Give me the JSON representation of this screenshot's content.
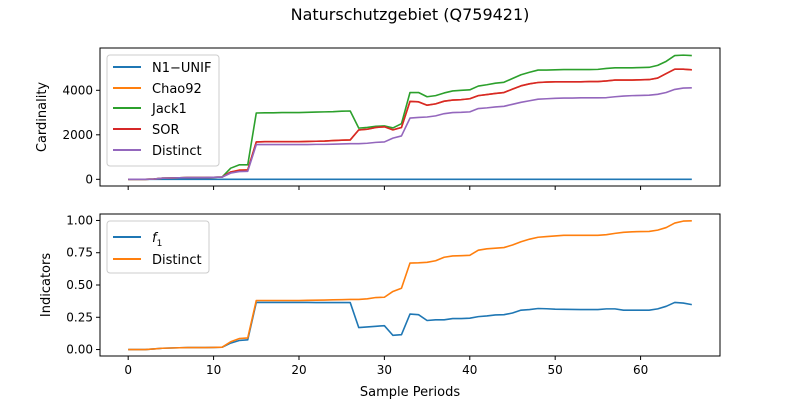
{
  "figure": {
    "title": "Naturschutzgebiet (Q759421)"
  },
  "colors": {
    "blue": "#1f77b4",
    "orange": "#ff7f0e",
    "green": "#2ca02c",
    "red": "#d62728",
    "purple": "#9467bd"
  },
  "chart_data": [
    {
      "type": "line",
      "ylabel": "Cardinality",
      "xlabel": "",
      "xlim": [
        -3.3,
        69.3
      ],
      "ylim": [
        -300,
        5900
      ],
      "x_ticks": [
        0,
        10,
        20,
        30,
        40,
        50,
        60
      ],
      "y_ticks": [
        0,
        2000,
        4000
      ],
      "y_tick_labels": [
        "0",
        "2000",
        "4000"
      ],
      "x": [
        0,
        1,
        2,
        3,
        4,
        5,
        6,
        7,
        8,
        9,
        10,
        11,
        12,
        13,
        14,
        15,
        16,
        17,
        18,
        19,
        20,
        21,
        22,
        23,
        24,
        25,
        26,
        27,
        28,
        29,
        30,
        31,
        32,
        33,
        34,
        35,
        36,
        37,
        38,
        39,
        40,
        41,
        42,
        43,
        44,
        45,
        46,
        47,
        48,
        49,
        50,
        51,
        52,
        53,
        54,
        55,
        56,
        57,
        58,
        59,
        60,
        61,
        62,
        63,
        64,
        65,
        66
      ],
      "legend_position": "upper left",
      "series": [
        {
          "name": "N1−UNIF",
          "color": "#1f77b4",
          "values": [
            0,
            0,
            0,
            0,
            0,
            0,
            0,
            0,
            0,
            0,
            0,
            0,
            0,
            0,
            0,
            0,
            0,
            0,
            0,
            0,
            0,
            0,
            0,
            0,
            0,
            0,
            0,
            0,
            0,
            0,
            0,
            0,
            0,
            0,
            0,
            0,
            0,
            0,
            0,
            0,
            0,
            0,
            0,
            0,
            0,
            0,
            0,
            0,
            0,
            0,
            0,
            0,
            0,
            0,
            0,
            0,
            0,
            0,
            0,
            0,
            0,
            0,
            0,
            0,
            0,
            0,
            0
          ]
        },
        {
          "name": "Chao92",
          "color": "#ff7f0e",
          "values": [
            0,
            0,
            0,
            10,
            50,
            60,
            70,
            80,
            80,
            80,
            90,
            100,
            330,
            420,
            430,
            1680,
            1690,
            1690,
            1690,
            1690,
            1690,
            1700,
            1710,
            1720,
            1740,
            1760,
            1770,
            2220,
            2250,
            2330,
            2360,
            2220,
            2330,
            3500,
            3480,
            3330,
            3390,
            3510,
            3560,
            3580,
            3620,
            3760,
            3810,
            3860,
            3900,
            4050,
            4200,
            4290,
            4350,
            4370,
            4380,
            4380,
            4380,
            4380,
            4390,
            4390,
            4420,
            4460,
            4460,
            4460,
            4470,
            4480,
            4550,
            4750,
            4950,
            4950,
            4920
          ]
        },
        {
          "name": "Jack1",
          "color": "#2ca02c",
          "values": [
            0,
            0,
            0,
            10,
            50,
            60,
            70,
            80,
            80,
            80,
            90,
            100,
            500,
            650,
            650,
            2980,
            2990,
            2990,
            3000,
            3000,
            3000,
            3010,
            3020,
            3030,
            3040,
            3060,
            3070,
            2300,
            2330,
            2380,
            2400,
            2310,
            2500,
            3900,
            3900,
            3710,
            3760,
            3880,
            3970,
            4000,
            4020,
            4190,
            4250,
            4320,
            4360,
            4530,
            4700,
            4810,
            4910,
            4910,
            4920,
            4930,
            4930,
            4930,
            4930,
            4940,
            4980,
            5010,
            5010,
            5010,
            5020,
            5030,
            5120,
            5300,
            5560,
            5580,
            5560
          ]
        },
        {
          "name": "SOR",
          "color": "#d62728",
          "values": [
            0,
            0,
            0,
            10,
            50,
            60,
            70,
            80,
            80,
            80,
            90,
            100,
            330,
            400,
            420,
            1680,
            1690,
            1690,
            1690,
            1690,
            1690,
            1700,
            1710,
            1720,
            1740,
            1760,
            1770,
            2220,
            2250,
            2330,
            2360,
            2220,
            2330,
            3500,
            3480,
            3330,
            3390,
            3510,
            3560,
            3580,
            3620,
            3760,
            3810,
            3860,
            3900,
            4050,
            4200,
            4290,
            4350,
            4370,
            4380,
            4380,
            4380,
            4380,
            4390,
            4390,
            4420,
            4460,
            4460,
            4460,
            4470,
            4480,
            4550,
            4750,
            4950,
            4950,
            4920
          ]
        },
        {
          "name": "Distinct",
          "color": "#9467bd",
          "values": [
            0,
            0,
            0,
            10,
            50,
            60,
            70,
            80,
            80,
            80,
            90,
            100,
            280,
            350,
            360,
            1560,
            1560,
            1560,
            1560,
            1560,
            1560,
            1560,
            1570,
            1570,
            1580,
            1590,
            1600,
            1600,
            1620,
            1660,
            1680,
            1850,
            1950,
            2750,
            2780,
            2800,
            2850,
            2950,
            3000,
            3010,
            3030,
            3180,
            3210,
            3250,
            3280,
            3370,
            3460,
            3530,
            3600,
            3620,
            3640,
            3650,
            3650,
            3660,
            3660,
            3660,
            3670,
            3710,
            3740,
            3760,
            3770,
            3780,
            3820,
            3900,
            4040,
            4100,
            4110
          ]
        }
      ]
    },
    {
      "type": "line",
      "ylabel": "Indicators",
      "xlabel": "Sample Periods",
      "xlim": [
        -3.3,
        69.3
      ],
      "ylim": [
        -0.05,
        1.05
      ],
      "x_ticks": [
        0,
        10,
        20,
        30,
        40,
        50,
        60
      ],
      "x_tick_labels": [
        "0",
        "10",
        "20",
        "30",
        "40",
        "50",
        "60"
      ],
      "y_ticks": [
        0,
        0.25,
        0.5,
        0.75,
        1.0
      ],
      "y_tick_labels": [
        "0.00",
        "0.25",
        "0.50",
        "0.75",
        "1.00"
      ],
      "x": [
        0,
        1,
        2,
        3,
        4,
        5,
        6,
        7,
        8,
        9,
        10,
        11,
        12,
        13,
        14,
        15,
        16,
        17,
        18,
        19,
        20,
        21,
        22,
        23,
        24,
        25,
        26,
        27,
        28,
        29,
        30,
        31,
        32,
        33,
        34,
        35,
        36,
        37,
        38,
        39,
        40,
        41,
        42,
        43,
        44,
        45,
        46,
        47,
        48,
        49,
        50,
        51,
        52,
        53,
        54,
        55,
        56,
        57,
        58,
        59,
        60,
        61,
        62,
        63,
        64,
        65,
        66
      ],
      "legend_position": "upper left",
      "series": [
        {
          "name": "f1",
          "legend_main": "f",
          "legend_sub": "1",
          "color": "#1f77b4",
          "values": [
            0,
            0,
            0,
            0.005,
            0.01,
            0.012,
            0.014,
            0.015,
            0.015,
            0.015,
            0.016,
            0.018,
            0.05,
            0.07,
            0.075,
            0.365,
            0.365,
            0.365,
            0.365,
            0.365,
            0.365,
            0.365,
            0.364,
            0.364,
            0.364,
            0.364,
            0.364,
            0.17,
            0.175,
            0.18,
            0.185,
            0.11,
            0.115,
            0.275,
            0.27,
            0.225,
            0.23,
            0.23,
            0.24,
            0.24,
            0.243,
            0.255,
            0.26,
            0.268,
            0.27,
            0.283,
            0.305,
            0.31,
            0.318,
            0.316,
            0.313,
            0.312,
            0.311,
            0.31,
            0.31,
            0.31,
            0.315,
            0.315,
            0.305,
            0.305,
            0.305,
            0.305,
            0.315,
            0.335,
            0.365,
            0.36,
            0.348
          ]
        },
        {
          "name": "Distinct",
          "color": "#ff7f0e",
          "values": [
            0,
            0,
            0,
            0.005,
            0.01,
            0.012,
            0.014,
            0.015,
            0.015,
            0.015,
            0.016,
            0.018,
            0.06,
            0.085,
            0.09,
            0.38,
            0.38,
            0.38,
            0.38,
            0.38,
            0.38,
            0.381,
            0.382,
            0.383,
            0.385,
            0.386,
            0.388,
            0.388,
            0.393,
            0.403,
            0.405,
            0.45,
            0.475,
            0.67,
            0.672,
            0.676,
            0.688,
            0.715,
            0.725,
            0.727,
            0.73,
            0.77,
            0.78,
            0.785,
            0.79,
            0.81,
            0.835,
            0.855,
            0.87,
            0.875,
            0.88,
            0.885,
            0.885,
            0.885,
            0.885,
            0.885,
            0.89,
            0.9,
            0.908,
            0.912,
            0.914,
            0.915,
            0.925,
            0.945,
            0.98,
            0.995,
            0.997
          ]
        }
      ]
    }
  ]
}
